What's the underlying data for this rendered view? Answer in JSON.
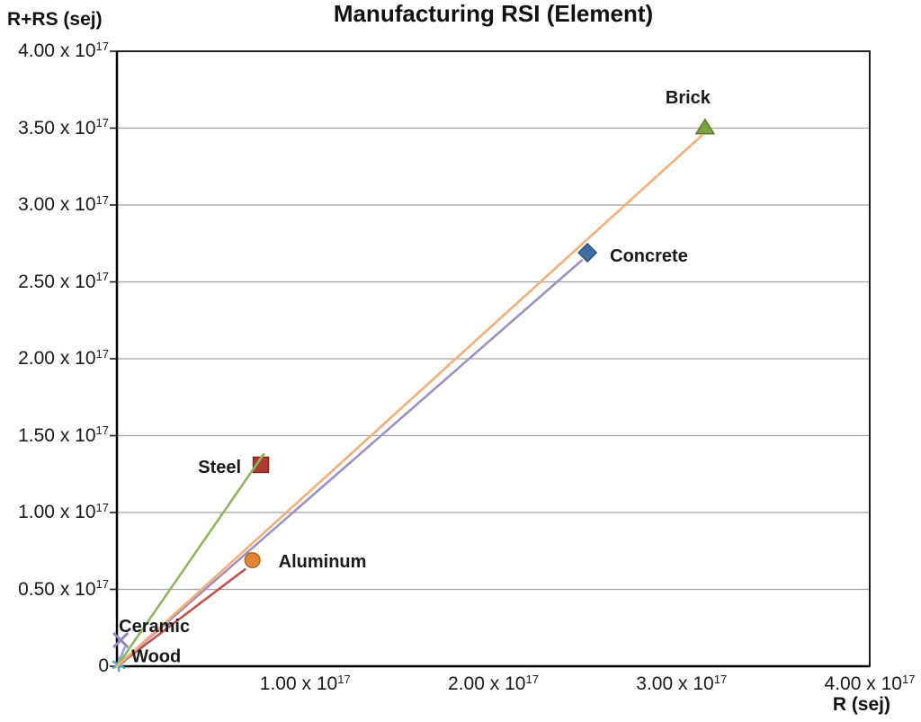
{
  "header": {
    "title": "Manufacturing RSI (Element)"
  },
  "chart_data": {
    "type": "scatter",
    "title": "Manufacturing RSI (Element)",
    "xlabel": "R (sej)",
    "ylabel": "R+RS (sej)",
    "units": "axis values in sej; point coordinates below are in multiples of 10^17 sej",
    "xlim": [
      0,
      4
    ],
    "ylim": [
      0,
      4
    ],
    "grid": "horizontal gray lines every 0.50 x 10^17",
    "legend": "none (points labeled directly)",
    "colors": {
      "gridline": "#A0A0A0",
      "plot_border": "#1F1F1F",
      "text": "#1a1a1a"
    },
    "yticks": [
      {
        "v": 0,
        "label": "0"
      },
      {
        "v": 0.5,
        "label": "0.50 x 10^17"
      },
      {
        "v": 1,
        "label": "1.00 x 10^17"
      },
      {
        "v": 1.5,
        "label": "1.50 x 10^17"
      },
      {
        "v": 2,
        "label": "2.00 x 10^17"
      },
      {
        "v": 2.5,
        "label": "2.50 x 10^17"
      },
      {
        "v": 3,
        "label": "3.00 x 10^17"
      },
      {
        "v": 3.5,
        "label": "3.50 x 10^17"
      },
      {
        "v": 4,
        "label": "4.00 x 10^17"
      }
    ],
    "xticks": [
      {
        "v": 1,
        "label": "1.00 x 10^17"
      },
      {
        "v": 2,
        "label": "2.00 x 10^17"
      },
      {
        "v": 3,
        "label": "3.00 x 10^17"
      },
      {
        "v": 4,
        "label": "4.00 x 10^17"
      }
    ],
    "series": [
      {
        "name": "Wood",
        "x": 0.01,
        "y": 0.01,
        "marker": "asterisk",
        "color": "#4BACC6",
        "stroke": "#4BACC6",
        "trendline": {
          "color": "#7EC5DA",
          "x2": 0.06,
          "y2": 0.07
        },
        "label": {
          "anchor": "start",
          "dx": 14,
          "dy": -3
        }
      },
      {
        "name": "Ceramic",
        "x": 0.02,
        "y": 0.17,
        "marker": "x",
        "color": "#9183C4",
        "stroke": "#9183C4",
        "trendline": {
          "color": "#8FA9DC",
          "x2": 0.04,
          "y2": 0.12
        },
        "label": {
          "anchor": "start",
          "dx": -2,
          "dy": -9
        }
      },
      {
        "name": "Aluminum",
        "x": 0.72,
        "y": 0.69,
        "marker": "circle",
        "color": "#E08531",
        "stroke": "#AD6425",
        "trendline": {
          "color": "#C0504D",
          "x2": 0.68,
          "y2": 0.63
        },
        "label": {
          "anchor": "start",
          "dx": 29,
          "dy": 8
        }
      },
      {
        "name": "Steel",
        "x": 0.765,
        "y": 1.31,
        "marker": "square",
        "color": "#AE3B31",
        "stroke": "#84291F",
        "trendline": {
          "color": "#8CB85A",
          "x2": 0.78,
          "y2": 1.38
        },
        "label": {
          "anchor": "end",
          "dx": -22,
          "dy": 9
        }
      },
      {
        "name": "Concrete",
        "x": 2.5,
        "y": 2.69,
        "marker": "diamond",
        "color": "#3E6CA5",
        "stroke": "#2F527D",
        "trendline": {
          "color": "#A08FC6",
          "x2": 2.47,
          "y2": 2.64
        },
        "label": {
          "anchor": "start",
          "dx": 25,
          "dy": 10
        }
      },
      {
        "name": "Brick",
        "x": 3.125,
        "y": 3.51,
        "marker": "triangle",
        "color": "#7CA23F",
        "stroke": "#5E7C2E",
        "trendline": {
          "color": "#F5AE76",
          "x2": 3.11,
          "y2": 3.455
        },
        "label": {
          "anchor": "middle",
          "dx": -19,
          "dy": -26
        }
      }
    ]
  }
}
